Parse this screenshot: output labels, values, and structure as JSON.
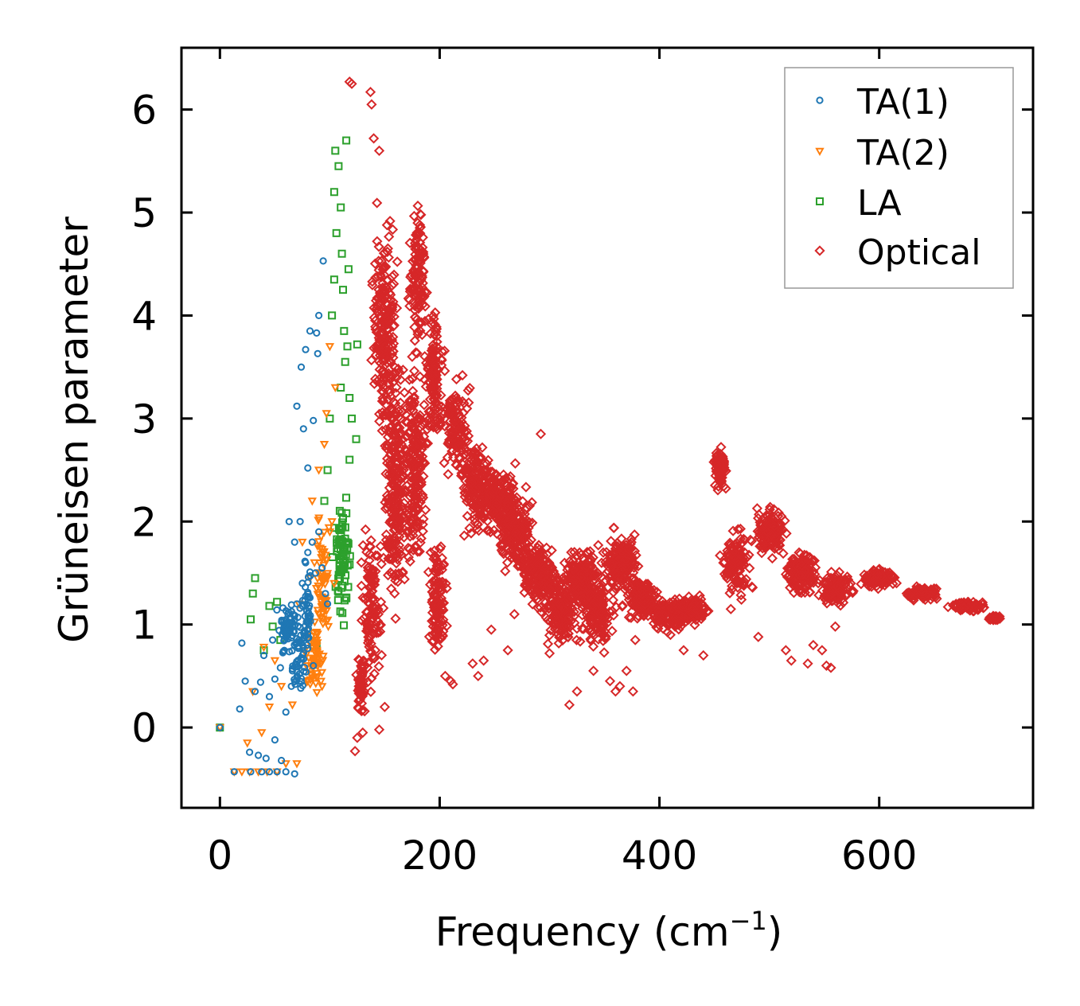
{
  "chart_data": {
    "type": "scatter",
    "title": "",
    "xlabel": "Frequency (cm",
    "xlabel_sup": "−1",
    "xlabel_suffix": ")",
    "ylabel": "Grüneisen parameter",
    "xlim": [
      -35,
      740
    ],
    "ylim": [
      -0.78,
      6.6
    ],
    "xticks": [
      0,
      200,
      400,
      600
    ],
    "xtick_labels": [
      "0",
      "200",
      "400",
      "600"
    ],
    "yticks": [
      0,
      1,
      2,
      3,
      4,
      5,
      6
    ],
    "ytick_labels": [
      "0",
      "1",
      "2",
      "3",
      "4",
      "5",
      "6"
    ],
    "legend_position": "top-right",
    "series": [
      {
        "name": "TA(1)",
        "marker": "circle",
        "color": "#1f77b4",
        "points": [
          [
            0,
            0
          ],
          [
            13,
            -0.43
          ],
          [
            18,
            0.18
          ],
          [
            20,
            0.82
          ],
          [
            23,
            0.45
          ],
          [
            27,
            -0.24
          ],
          [
            28,
            -0.43
          ],
          [
            32,
            0.35
          ],
          [
            35,
            -0.27
          ],
          [
            37,
            0.44
          ],
          [
            38,
            -0.43
          ],
          [
            40,
            0.7
          ],
          [
            42,
            -0.3
          ],
          [
            45,
            0.3
          ],
          [
            45,
            -0.43
          ],
          [
            48,
            0.85
          ],
          [
            50,
            -0.12
          ],
          [
            50,
            0.47
          ],
          [
            52,
            -0.43
          ],
          [
            55,
            0.58
          ],
          [
            56,
            -0.32
          ],
          [
            58,
            0.95
          ],
          [
            60,
            0.15
          ],
          [
            60,
            -0.43
          ],
          [
            62,
            1.1
          ],
          [
            63,
            2.0
          ],
          [
            65,
            0.4
          ],
          [
            66,
            0.55
          ],
          [
            68,
            1.8
          ],
          [
            68,
            -0.45
          ],
          [
            70,
            1.2
          ],
          [
            70,
            3.12
          ],
          [
            72,
            0.85
          ],
          [
            73,
            2.0
          ],
          [
            74,
            3.5
          ],
          [
            75,
            1.4
          ],
          [
            76,
            2.9
          ],
          [
            78,
            1.6
          ],
          [
            78,
            3.67
          ],
          [
            80,
            1.7
          ],
          [
            80,
            2.52
          ],
          [
            82,
            3.85
          ],
          [
            84,
            1.8
          ],
          [
            85,
            0.6
          ],
          [
            85,
            2.98
          ],
          [
            87,
            1.5
          ],
          [
            88,
            3.83
          ],
          [
            89,
            3.63
          ],
          [
            90,
            1.9
          ],
          [
            90,
            4.0
          ],
          [
            93,
            1.55
          ],
          [
            94,
            4.53
          ],
          [
            96,
            1.3
          ],
          [
            98,
            1.2
          ]
        ],
        "clouds": [
          [
            62,
            0.95,
            12,
            0.3,
            70
          ],
          [
            72,
            0.65,
            9,
            0.45,
            45
          ],
          [
            79,
            1.15,
            8,
            0.6,
            50
          ]
        ]
      },
      {
        "name": "TA(2)",
        "marker": "triangle",
        "color": "#ff7f0e",
        "points": [
          [
            0,
            0
          ],
          [
            13,
            -0.43
          ],
          [
            20,
            -0.43
          ],
          [
            25,
            -0.15
          ],
          [
            27,
            -0.43
          ],
          [
            30,
            0.35
          ],
          [
            35,
            -0.43
          ],
          [
            38,
            -0.05
          ],
          [
            40,
            0.78
          ],
          [
            43,
            -0.43
          ],
          [
            45,
            0.2
          ],
          [
            50,
            0.65
          ],
          [
            52,
            -0.43
          ],
          [
            56,
            0.4
          ],
          [
            60,
            -0.35
          ],
          [
            62,
            0.9
          ],
          [
            66,
            0.22
          ],
          [
            70,
            -0.35
          ],
          [
            72,
            1.2
          ],
          [
            75,
            1.8
          ],
          [
            80,
            1.0
          ],
          [
            82,
            1.45
          ],
          [
            84,
            2.2
          ],
          [
            86,
            1.6
          ],
          [
            88,
            0.85
          ],
          [
            90,
            2.5
          ],
          [
            92,
            0.45
          ],
          [
            95,
            2.75
          ],
          [
            97,
            3.05
          ],
          [
            100,
            1.9
          ],
          [
            100,
            3.7
          ],
          [
            102,
            2.0
          ],
          [
            104,
            1.4
          ],
          [
            105,
            3.3
          ]
        ],
        "clouds": [
          [
            86,
            0.65,
            10,
            0.5,
            55
          ],
          [
            94,
            1.4,
            9,
            0.9,
            60
          ]
        ]
      },
      {
        "name": "LA",
        "marker": "square",
        "color": "#2ca02c",
        "points": [
          [
            0,
            0
          ],
          [
            28,
            1.05
          ],
          [
            30,
            1.3
          ],
          [
            32,
            1.45
          ],
          [
            40,
            0.75
          ],
          [
            45,
            1.18
          ],
          [
            48,
            0.98
          ],
          [
            52,
            1.22
          ],
          [
            55,
            0.85
          ],
          [
            88,
            0.8
          ],
          [
            95,
            2.2
          ],
          [
            98,
            2.5
          ],
          [
            100,
            3.0
          ],
          [
            102,
            4.0
          ],
          [
            104,
            4.35
          ],
          [
            104,
            5.2
          ],
          [
            105,
            5.6
          ],
          [
            106,
            4.8
          ],
          [
            108,
            5.45
          ],
          [
            110,
            3.3
          ],
          [
            110,
            5.05
          ],
          [
            111,
            4.6
          ],
          [
            112,
            4.25
          ],
          [
            113,
            3.85
          ],
          [
            114,
            3.55
          ],
          [
            115,
            5.7
          ],
          [
            116,
            3.7
          ],
          [
            117,
            4.45
          ],
          [
            118,
            3.2
          ],
          [
            118,
            2.6
          ],
          [
            120,
            3.0
          ],
          [
            124,
            2.8
          ],
          [
            125,
            3.72
          ]
        ],
        "clouds": [
          [
            111,
            1.65,
            9,
            0.7,
            80
          ]
        ]
      },
      {
        "name": "Optical",
        "marker": "diamond",
        "color": "#d62728",
        "points": [
          [
            118,
            6.27
          ],
          [
            120,
            6.25
          ],
          [
            123,
            -0.23
          ],
          [
            125,
            -0.1
          ],
          [
            130,
            -0.05
          ],
          [
            137,
            6.17
          ],
          [
            138,
            6.05
          ],
          [
            140,
            5.72
          ],
          [
            145,
            -0.02
          ],
          [
            145,
            5.6
          ],
          [
            150,
            0.2
          ],
          [
            175,
            3.6
          ],
          [
            205,
            0.5
          ],
          [
            210,
            0.45
          ],
          [
            212,
            0.42
          ],
          [
            230,
            0.62
          ],
          [
            235,
            0.5
          ],
          [
            240,
            0.65
          ],
          [
            247,
            0.95
          ],
          [
            262,
            0.75
          ],
          [
            268,
            1.1
          ],
          [
            280,
            1.35
          ],
          [
            292,
            2.85
          ],
          [
            300,
            0.72
          ],
          [
            318,
            0.22
          ],
          [
            325,
            0.35
          ],
          [
            340,
            0.55
          ],
          [
            355,
            0.45
          ],
          [
            360,
            0.35
          ],
          [
            364,
            0.4
          ],
          [
            370,
            0.55
          ],
          [
            376,
            0.35
          ],
          [
            378,
            0.85
          ],
          [
            410,
            0.9
          ],
          [
            422,
            0.75
          ],
          [
            440,
            0.7
          ],
          [
            465,
            1.15
          ],
          [
            490,
            0.88
          ],
          [
            515,
            0.75
          ],
          [
            520,
            0.65
          ],
          [
            535,
            0.62
          ],
          [
            540,
            0.8
          ],
          [
            548,
            0.75
          ],
          [
            552,
            0.6
          ],
          [
            556,
            0.58
          ],
          [
            560,
            0.98
          ]
        ],
        "clouds": [
          [
            128,
            0.4,
            6,
            0.35,
            60
          ],
          [
            138,
            1.2,
            12,
            0.9,
            120
          ],
          [
            150,
            3.8,
            14,
            1.5,
            220
          ],
          [
            160,
            2.3,
            14,
            1.6,
            250
          ],
          [
            180,
            4.4,
            10,
            0.9,
            120
          ],
          [
            178,
            2.5,
            12,
            1.2,
            200
          ],
          [
            195,
            3.4,
            12,
            0.8,
            130
          ],
          [
            198,
            1.3,
            10,
            0.8,
            110
          ],
          [
            215,
            2.9,
            15,
            0.6,
            120
          ],
          [
            235,
            2.3,
            20,
            0.55,
            160
          ],
          [
            255,
            2.2,
            22,
            0.45,
            160
          ],
          [
            270,
            1.9,
            22,
            0.5,
            170
          ],
          [
            290,
            1.5,
            22,
            0.45,
            170
          ],
          [
            310,
            1.15,
            20,
            0.5,
            160
          ],
          [
            330,
            1.45,
            20,
            0.4,
            160
          ],
          [
            345,
            1.1,
            18,
            0.45,
            140
          ],
          [
            365,
            1.6,
            22,
            0.35,
            150
          ],
          [
            385,
            1.25,
            22,
            0.25,
            140
          ],
          [
            410,
            1.1,
            22,
            0.2,
            130
          ],
          [
            430,
            1.15,
            18,
            0.2,
            100
          ],
          [
            455,
            2.5,
            8,
            0.25,
            80
          ],
          [
            470,
            1.6,
            18,
            0.4,
            120
          ],
          [
            500,
            1.9,
            20,
            0.3,
            130
          ],
          [
            530,
            1.5,
            20,
            0.3,
            130
          ],
          [
            560,
            1.35,
            20,
            0.2,
            110
          ],
          [
            600,
            1.45,
            22,
            0.12,
            110
          ],
          [
            640,
            1.3,
            22,
            0.08,
            90
          ],
          [
            680,
            1.18,
            20,
            0.06,
            80
          ],
          [
            705,
            1.06,
            8,
            0.03,
            30
          ]
        ]
      }
    ]
  }
}
